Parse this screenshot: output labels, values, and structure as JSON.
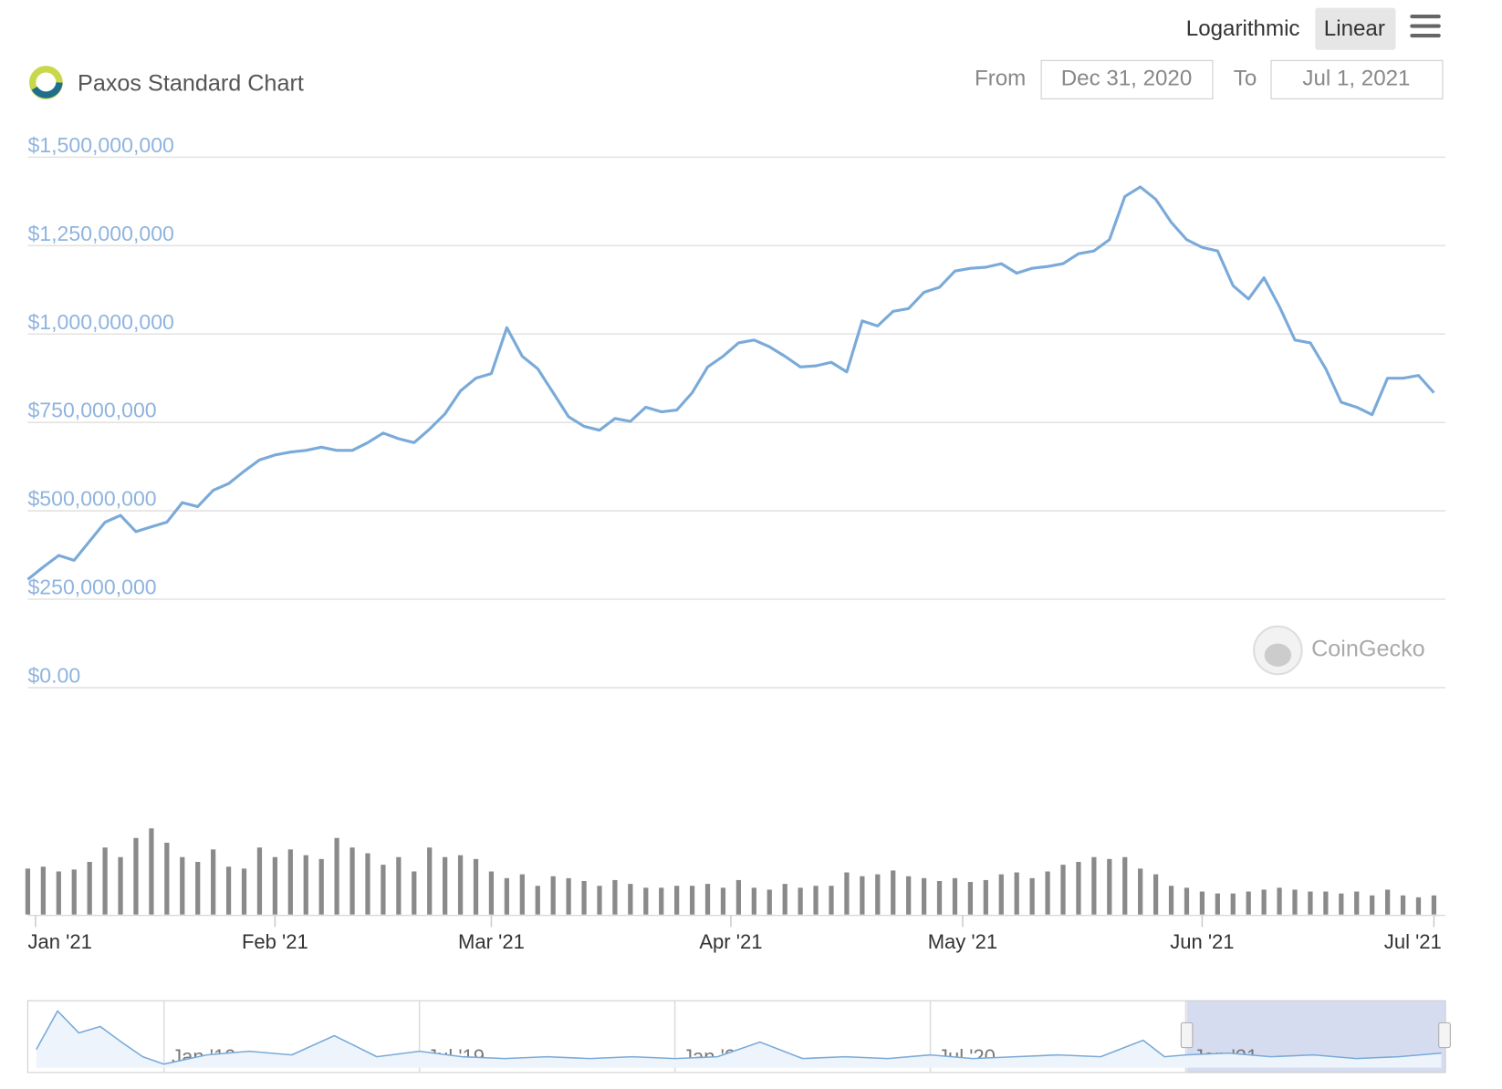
{
  "toolbar": {
    "scale_options": [
      "Logarithmic",
      "Linear"
    ],
    "from_label": "From",
    "from_date": "Dec 31, 2020",
    "to_label": "To",
    "to_date": "Jul 1, 2021"
  },
  "watermark": "CoinGecko",
  "chart_data": [
    {
      "type": "line",
      "title": "Paxos Standard Chart",
      "color": "#7aaad9",
      "x": [
        -1,
        1,
        3,
        5,
        7,
        9,
        11,
        13,
        15,
        17,
        19,
        21,
        23,
        25,
        27,
        29,
        31,
        33,
        35,
        37,
        39,
        41,
        43,
        45,
        47,
        49,
        51,
        53,
        55,
        57,
        59,
        61,
        63,
        65,
        67,
        69,
        71,
        73,
        75,
        77,
        79,
        81,
        83,
        85,
        87,
        89,
        91,
        93,
        95,
        97,
        99,
        101,
        103,
        105,
        107,
        109,
        111,
        113,
        115,
        117,
        119,
        121,
        123,
        125,
        127,
        129,
        131,
        133,
        135,
        137,
        139,
        141,
        143,
        145,
        147,
        149,
        151,
        153,
        155,
        157,
        159,
        161,
        163,
        165,
        167,
        169,
        171,
        173,
        175,
        177,
        179,
        181
      ],
      "values": [
        306000000,
        341000000,
        374000000,
        360000000,
        414000000,
        468000000,
        487000000,
        441000000,
        455000000,
        468000000,
        523000000,
        512000000,
        558000000,
        577000000,
        612000000,
        644000000,
        658000000,
        666000000,
        671000000,
        680000000,
        671000000,
        671000000,
        693000000,
        720000000,
        704000000,
        693000000,
        731000000,
        774000000,
        839000000,
        875000000,
        888000000,
        1018000000,
        937000000,
        902000000,
        834000000,
        766000000,
        739000000,
        728000000,
        761000000,
        753000000,
        793000000,
        780000000,
        785000000,
        834000000,
        907000000,
        937000000,
        975000000,
        983000000,
        964000000,
        937000000,
        907000000,
        910000000,
        920000000,
        893000000,
        1037000000,
        1023000000,
        1064000000,
        1072000000,
        1118000000,
        1132000000,
        1178000000,
        1186000000,
        1189000000,
        1199000000,
        1172000000,
        1186000000,
        1191000000,
        1199000000,
        1227000000,
        1235000000,
        1267000000,
        1389000000,
        1416000000,
        1381000000,
        1316000000,
        1267000000,
        1245000000,
        1235000000,
        1137000000,
        1099000000,
        1159000000,
        1078000000,
        983000000,
        975000000,
        902000000,
        807000000,
        793000000,
        772000000,
        875000000,
        875000000,
        883000000,
        834000000
      ],
      "xlim": [
        -1,
        182
      ],
      "xticks": [
        {
          "value": 0,
          "label": "Jan '21"
        },
        {
          "value": 31,
          "label": "Feb '21"
        },
        {
          "value": 59,
          "label": "Mar '21"
        },
        {
          "value": 90,
          "label": "Apr '21"
        },
        {
          "value": 120,
          "label": "May '21"
        },
        {
          "value": 151,
          "label": "Jun '21"
        },
        {
          "value": 181,
          "label": "Jul '21"
        }
      ],
      "ylim": [
        0,
        1500000000
      ],
      "yticks": [
        {
          "value": 0,
          "label": "$0.00"
        },
        {
          "value": 250000000,
          "label": "$250,000,000"
        },
        {
          "value": 500000000,
          "label": "$500,000,000"
        },
        {
          "value": 750000000,
          "label": "$750,000,000"
        },
        {
          "value": 1000000000,
          "label": "$1,000,000,000"
        },
        {
          "value": 1250000000,
          "label": "$1,250,000,000"
        },
        {
          "value": 1500000000,
          "label": "$1,500,000,000"
        }
      ],
      "grid": true
    },
    {
      "type": "bar",
      "color": "#8a8a8a",
      "x": [
        -1,
        1,
        3,
        5,
        7,
        9,
        11,
        13,
        15,
        17,
        19,
        21,
        23,
        25,
        27,
        29,
        31,
        33,
        35,
        37,
        39,
        41,
        43,
        45,
        47,
        49,
        51,
        53,
        55,
        57,
        59,
        61,
        63,
        65,
        67,
        69,
        71,
        73,
        75,
        77,
        79,
        81,
        83,
        85,
        87,
        89,
        91,
        93,
        95,
        97,
        99,
        101,
        103,
        105,
        107,
        109,
        111,
        113,
        115,
        117,
        119,
        121,
        123,
        125,
        127,
        129,
        131,
        133,
        135,
        137,
        139,
        141,
        143,
        145,
        147,
        149,
        151,
        153,
        155,
        157,
        159,
        161,
        163,
        165,
        167,
        169,
        171,
        173,
        175,
        177,
        179,
        181
      ],
      "values": [
        48,
        50,
        45,
        47,
        55,
        70,
        60,
        80,
        90,
        75,
        60,
        55,
        68,
        50,
        48,
        70,
        60,
        68,
        62,
        58,
        80,
        70,
        64,
        52,
        60,
        45,
        70,
        60,
        62,
        58,
        45,
        38,
        42,
        30,
        40,
        38,
        35,
        30,
        36,
        32,
        28,
        28,
        30,
        30,
        32,
        28,
        36,
        28,
        26,
        32,
        28,
        30,
        30,
        44,
        40,
        42,
        46,
        40,
        38,
        35,
        38,
        34,
        36,
        42,
        44,
        38,
        45,
        52,
        55,
        60,
        58,
        60,
        48,
        42,
        30,
        28,
        24,
        22,
        22,
        24,
        26,
        28,
        26,
        24,
        24,
        22,
        24,
        20,
        26,
        20,
        18,
        20
      ],
      "xlim": [
        -1,
        182
      ],
      "ylim": [
        0,
        130
      ]
    },
    {
      "type": "line",
      "color": "#7aaad9",
      "x": [
        -3,
        -2.5,
        -2,
        -1.5,
        -1,
        -0.5,
        0,
        1,
        2,
        3,
        4,
        5,
        6,
        7,
        8,
        9,
        10,
        11,
        12,
        13,
        14,
        15,
        16,
        17,
        18,
        19,
        20,
        21,
        22,
        23,
        23.5,
        24,
        25,
        26,
        27,
        28,
        29,
        30
      ],
      "values": [
        20,
        62,
        38,
        45,
        28,
        12,
        4,
        14,
        18,
        14,
        35,
        12,
        18,
        12,
        10,
        12,
        10,
        12,
        10,
        12,
        28,
        10,
        12,
        10,
        14,
        10,
        12,
        14,
        12,
        30,
        12,
        14,
        16,
        12,
        14,
        10,
        12,
        16
      ],
      "xlim": [
        -3.2,
        30.1
      ],
      "ylim": [
        0,
        70
      ],
      "xticks": [
        {
          "value": 0,
          "label": "Jan '19"
        },
        {
          "value": 6,
          "label": "Jul '19"
        },
        {
          "value": 12,
          "label": "Jan '20"
        },
        {
          "value": 18,
          "label": "Jul '20"
        },
        {
          "value": 24,
          "label": "Jan '21"
        }
      ]
    }
  ]
}
